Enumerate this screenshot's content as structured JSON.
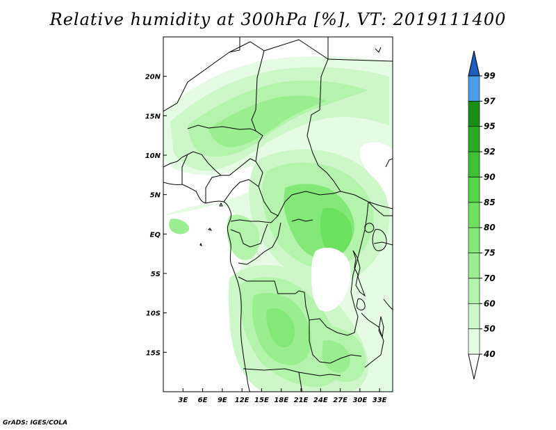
{
  "title": "Relative humidity at 300hPa [%], VT: 2019111400",
  "credit": "GrADS: IGES/COLA",
  "map": {
    "lon_range": [
      0,
      35
    ],
    "lat_range": [
      -20,
      25
    ],
    "x_ticks": [
      {
        "lon": 3,
        "label": "3E"
      },
      {
        "lon": 6,
        "label": "6E"
      },
      {
        "lon": 9,
        "label": "9E"
      },
      {
        "lon": 12,
        "label": "12E"
      },
      {
        "lon": 15,
        "label": "15E"
      },
      {
        "lon": 18,
        "label": "18E"
      },
      {
        "lon": 21,
        "label": "21E"
      },
      {
        "lon": 24,
        "label": "24E"
      },
      {
        "lon": 27,
        "label": "27E"
      },
      {
        "lon": 30,
        "label": "30E"
      },
      {
        "lon": 33,
        "label": "33E"
      }
    ],
    "y_ticks": [
      {
        "lat": 20,
        "label": "20N"
      },
      {
        "lat": 15,
        "label": "15N"
      },
      {
        "lat": 10,
        "label": "10N"
      },
      {
        "lat": 5,
        "label": "5N"
      },
      {
        "lat": 0,
        "label": "EQ"
      },
      {
        "lat": -5,
        "label": "5S"
      },
      {
        "lat": -10,
        "label": "10S"
      },
      {
        "lat": -15,
        "label": "15S"
      }
    ]
  },
  "colorbar": {
    "levels": [
      {
        "label": "40",
        "color": "#e6fbe3"
      },
      {
        "label": "50",
        "color": "#cdf7c8"
      },
      {
        "label": "60",
        "color": "#b4f3ab"
      },
      {
        "label": "70",
        "color": "#9aee90"
      },
      {
        "label": "75",
        "color": "#84e879"
      },
      {
        "label": "80",
        "color": "#6ce05f"
      },
      {
        "label": "85",
        "color": "#55d548"
      },
      {
        "label": "90",
        "color": "#3cc232"
      },
      {
        "label": "92",
        "color": "#2aaa22"
      },
      {
        "label": "95",
        "color": "#189015"
      },
      {
        "label": "97",
        "color": "#4a9ee8"
      },
      {
        "label": "99",
        "color": "#2a78d8"
      }
    ],
    "low_color": "#ffffff",
    "high_color": "#1c5fc0"
  }
}
